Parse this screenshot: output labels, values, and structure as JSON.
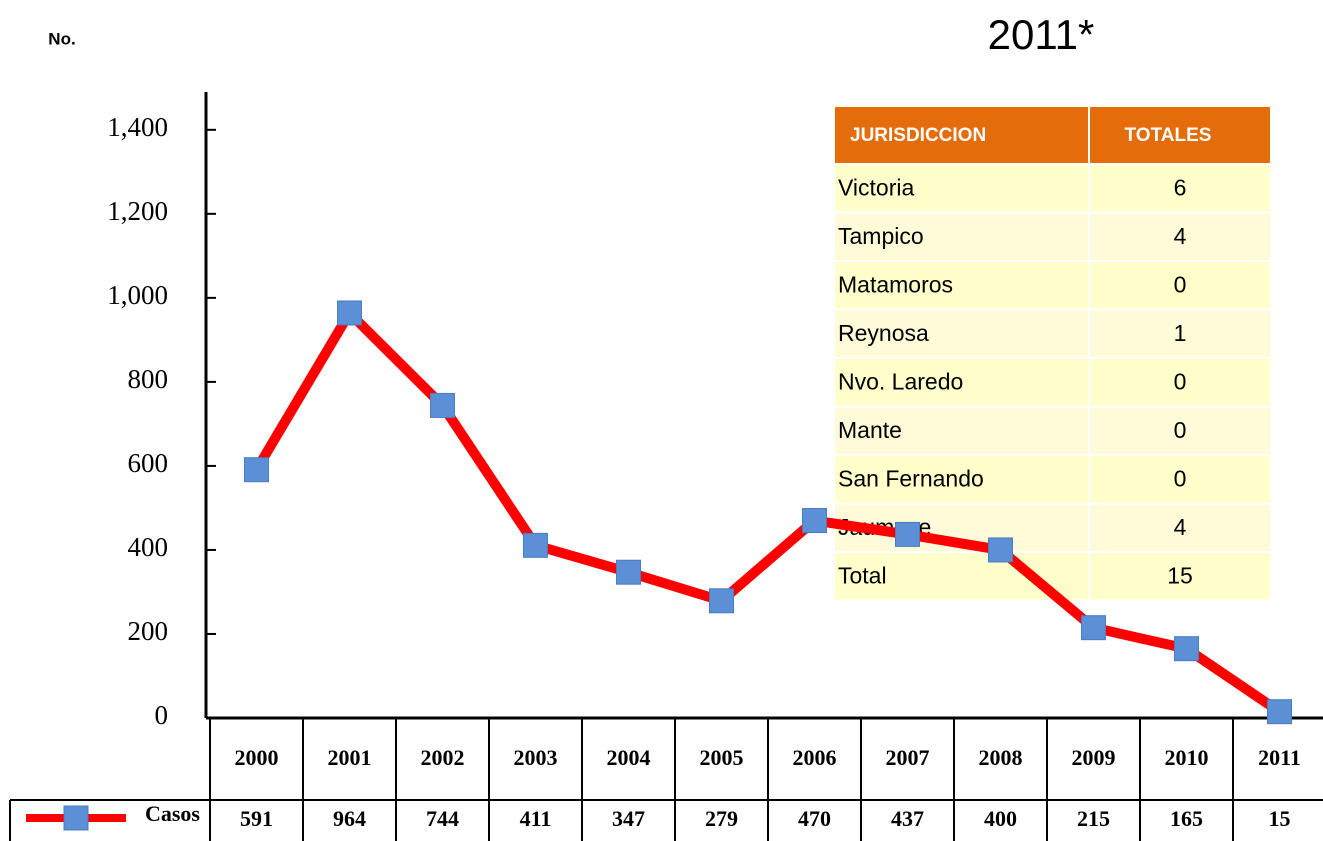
{
  "chart_data": {
    "type": "line",
    "y_label": "No.",
    "categories": [
      "2000",
      "2001",
      "2002",
      "2003",
      "2004",
      "2005",
      "2006",
      "2007",
      "2008",
      "2009",
      "2010",
      "2011"
    ],
    "series": [
      {
        "name": "Casos",
        "color": "#ff0000",
        "marker_color": "#5b8fd6",
        "values": [
          591,
          964,
          744,
          411,
          347,
          279,
          470,
          437,
          400,
          215,
          165,
          15
        ]
      }
    ],
    "ylim": [
      0,
      1490
    ],
    "yticks": [
      0,
      200,
      400,
      600,
      800,
      {
        "value": 1000,
        "label": "1,000"
      },
      {
        "value": 1200,
        "label": "1,200"
      },
      {
        "value": 1400,
        "label": "1,400"
      }
    ]
  },
  "table": {
    "title": "2011*",
    "headers": [
      "JURISDICCION",
      "TOTALES"
    ],
    "rows": [
      [
        "Victoria",
        "6"
      ],
      [
        "Tampico",
        "4"
      ],
      [
        "Matamoros",
        "0"
      ],
      [
        "Reynosa",
        "1"
      ],
      [
        "Nvo. Laredo",
        "0"
      ],
      [
        "Mante",
        "0"
      ],
      [
        "San Fernando",
        "0"
      ],
      [
        "Jaumave",
        "4"
      ],
      [
        "Total",
        "15"
      ]
    ]
  }
}
